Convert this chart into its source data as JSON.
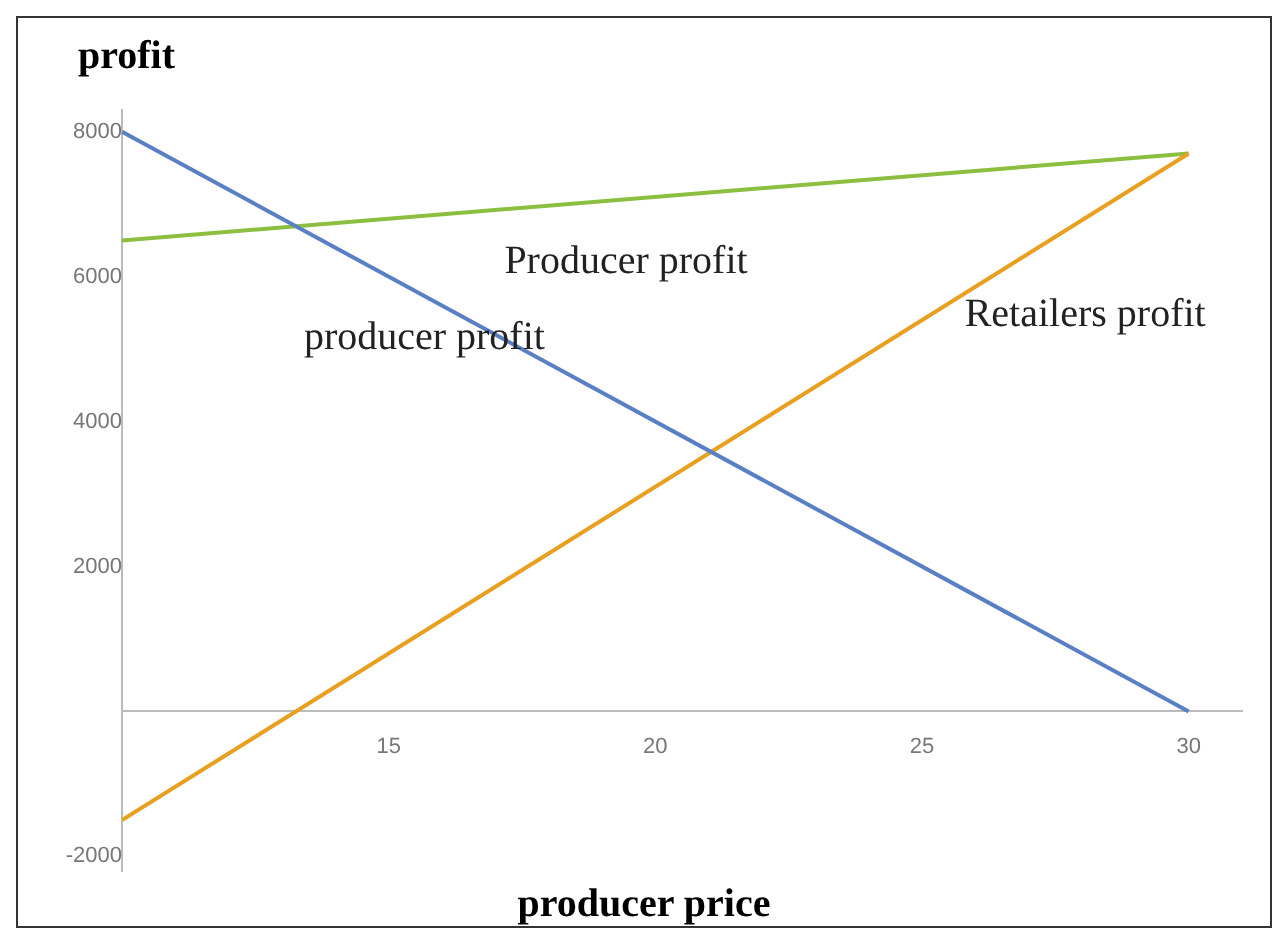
{
  "chart_data": {
    "type": "line",
    "ylabel": "profit",
    "xlabel": "producer price",
    "x": [
      10,
      30
    ],
    "series": [
      {
        "color": "#5b7fc4",
        "values": [
          8000,
          0
        ]
      },
      {
        "color": "#e8a020",
        "values": [
          -1500,
          7700
        ]
      },
      {
        "color": "#8cbf3f",
        "values": [
          6500,
          7700
        ]
      }
    ],
    "xlim": [
      10,
      31
    ],
    "ylim": [
      -2200,
      8300
    ],
    "xticks": [
      15,
      20,
      25,
      30
    ],
    "yticks": [
      -2000,
      2000,
      4000,
      6000,
      8000
    ],
    "grid": false,
    "legend": false,
    "marker": "none",
    "line_style": "solid",
    "annotations": [
      "Producer profit",
      "producer profit",
      "Retailers profit"
    ]
  }
}
